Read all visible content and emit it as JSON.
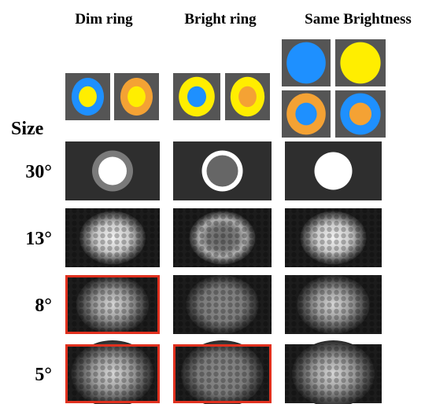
{
  "headers": {
    "columns": [
      "Dim ring",
      "Bright ring",
      "Same Brightness"
    ],
    "row_header": "Size"
  },
  "rows": [
    "30°",
    "13°",
    "8°",
    "5°"
  ]
}
